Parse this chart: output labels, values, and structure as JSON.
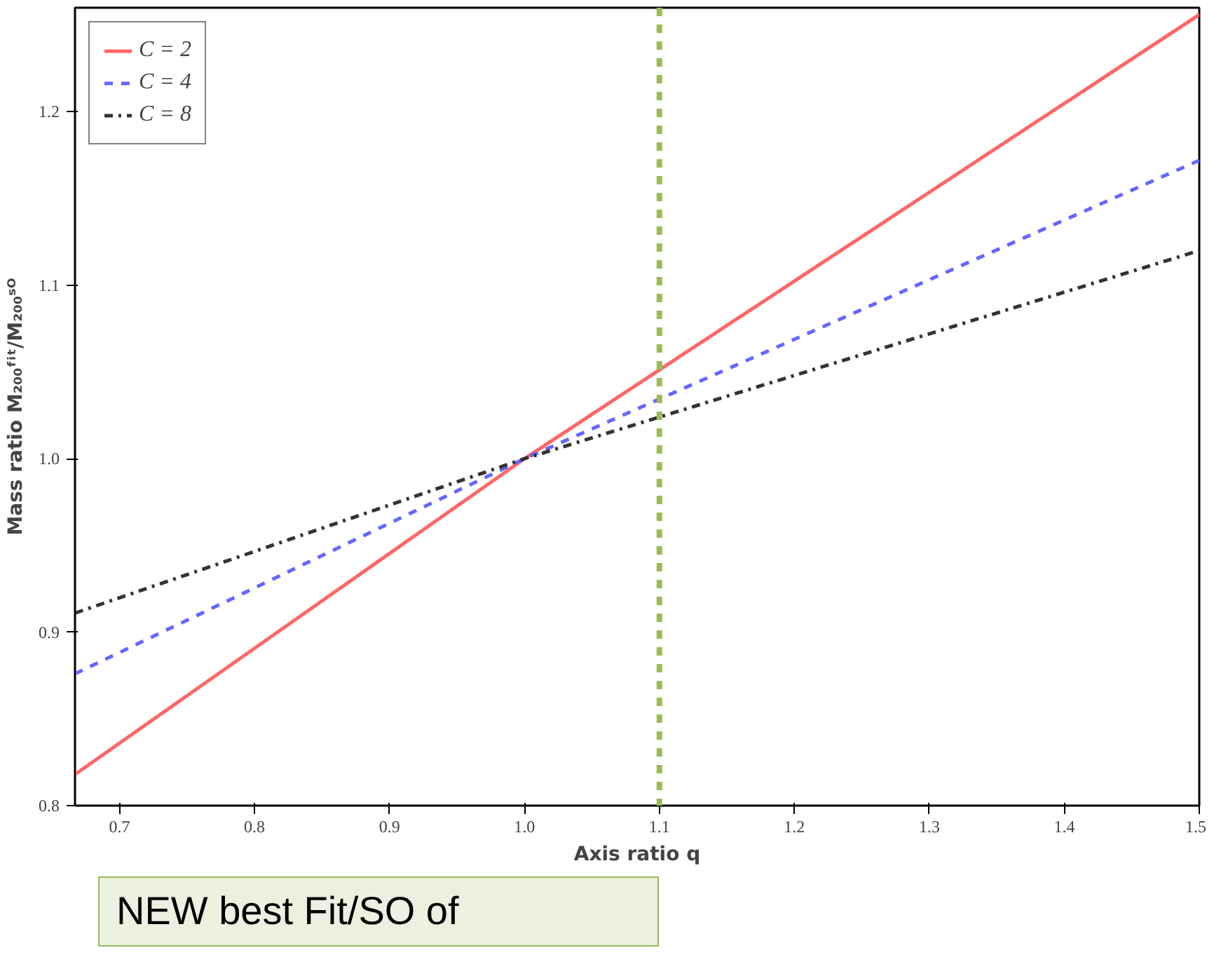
{
  "chart_data": {
    "type": "line",
    "xlabel": "Axis ratio q",
    "ylabel": "Mass ratio M₂₀₀ᶠⁱᵗ/M₂₀₀ˢᴼ",
    "x": [
      0.667,
      1.0,
      1.5
    ],
    "series": [
      {
        "name": "C = 2",
        "color": "#ff6666",
        "line_style": "solid",
        "values": [
          0.818,
          1.0,
          1.256
        ]
      },
      {
        "name": "C = 4",
        "color": "#6666ff",
        "line_style": "dashed",
        "values": [
          0.876,
          1.0,
          1.172
        ]
      },
      {
        "name": "C = 8",
        "color": "#333333",
        "line_style": "dashdot",
        "values": [
          0.911,
          1.0,
          1.12
        ]
      }
    ],
    "xlim": [
      0.667,
      1.5
    ],
    "ylim": [
      0.8,
      1.26
    ],
    "xticks": [
      0.7,
      0.8,
      0.9,
      {
        "value": 1,
        "label": "1.0"
      },
      1.1,
      1.2,
      1.3,
      1.4,
      1.5
    ],
    "yticks": [
      0.8,
      0.9,
      {
        "value": 1,
        "label": "1.0"
      },
      1.1,
      1.2
    ],
    "ref_lines": [
      {
        "axis": "x",
        "value": 1.1,
        "color": "#9bbb59",
        "line_style": "dashed"
      }
    ],
    "annotations": [
      "NEW best Fit/SO of"
    ],
    "legend": "top left",
    "grid": false
  }
}
